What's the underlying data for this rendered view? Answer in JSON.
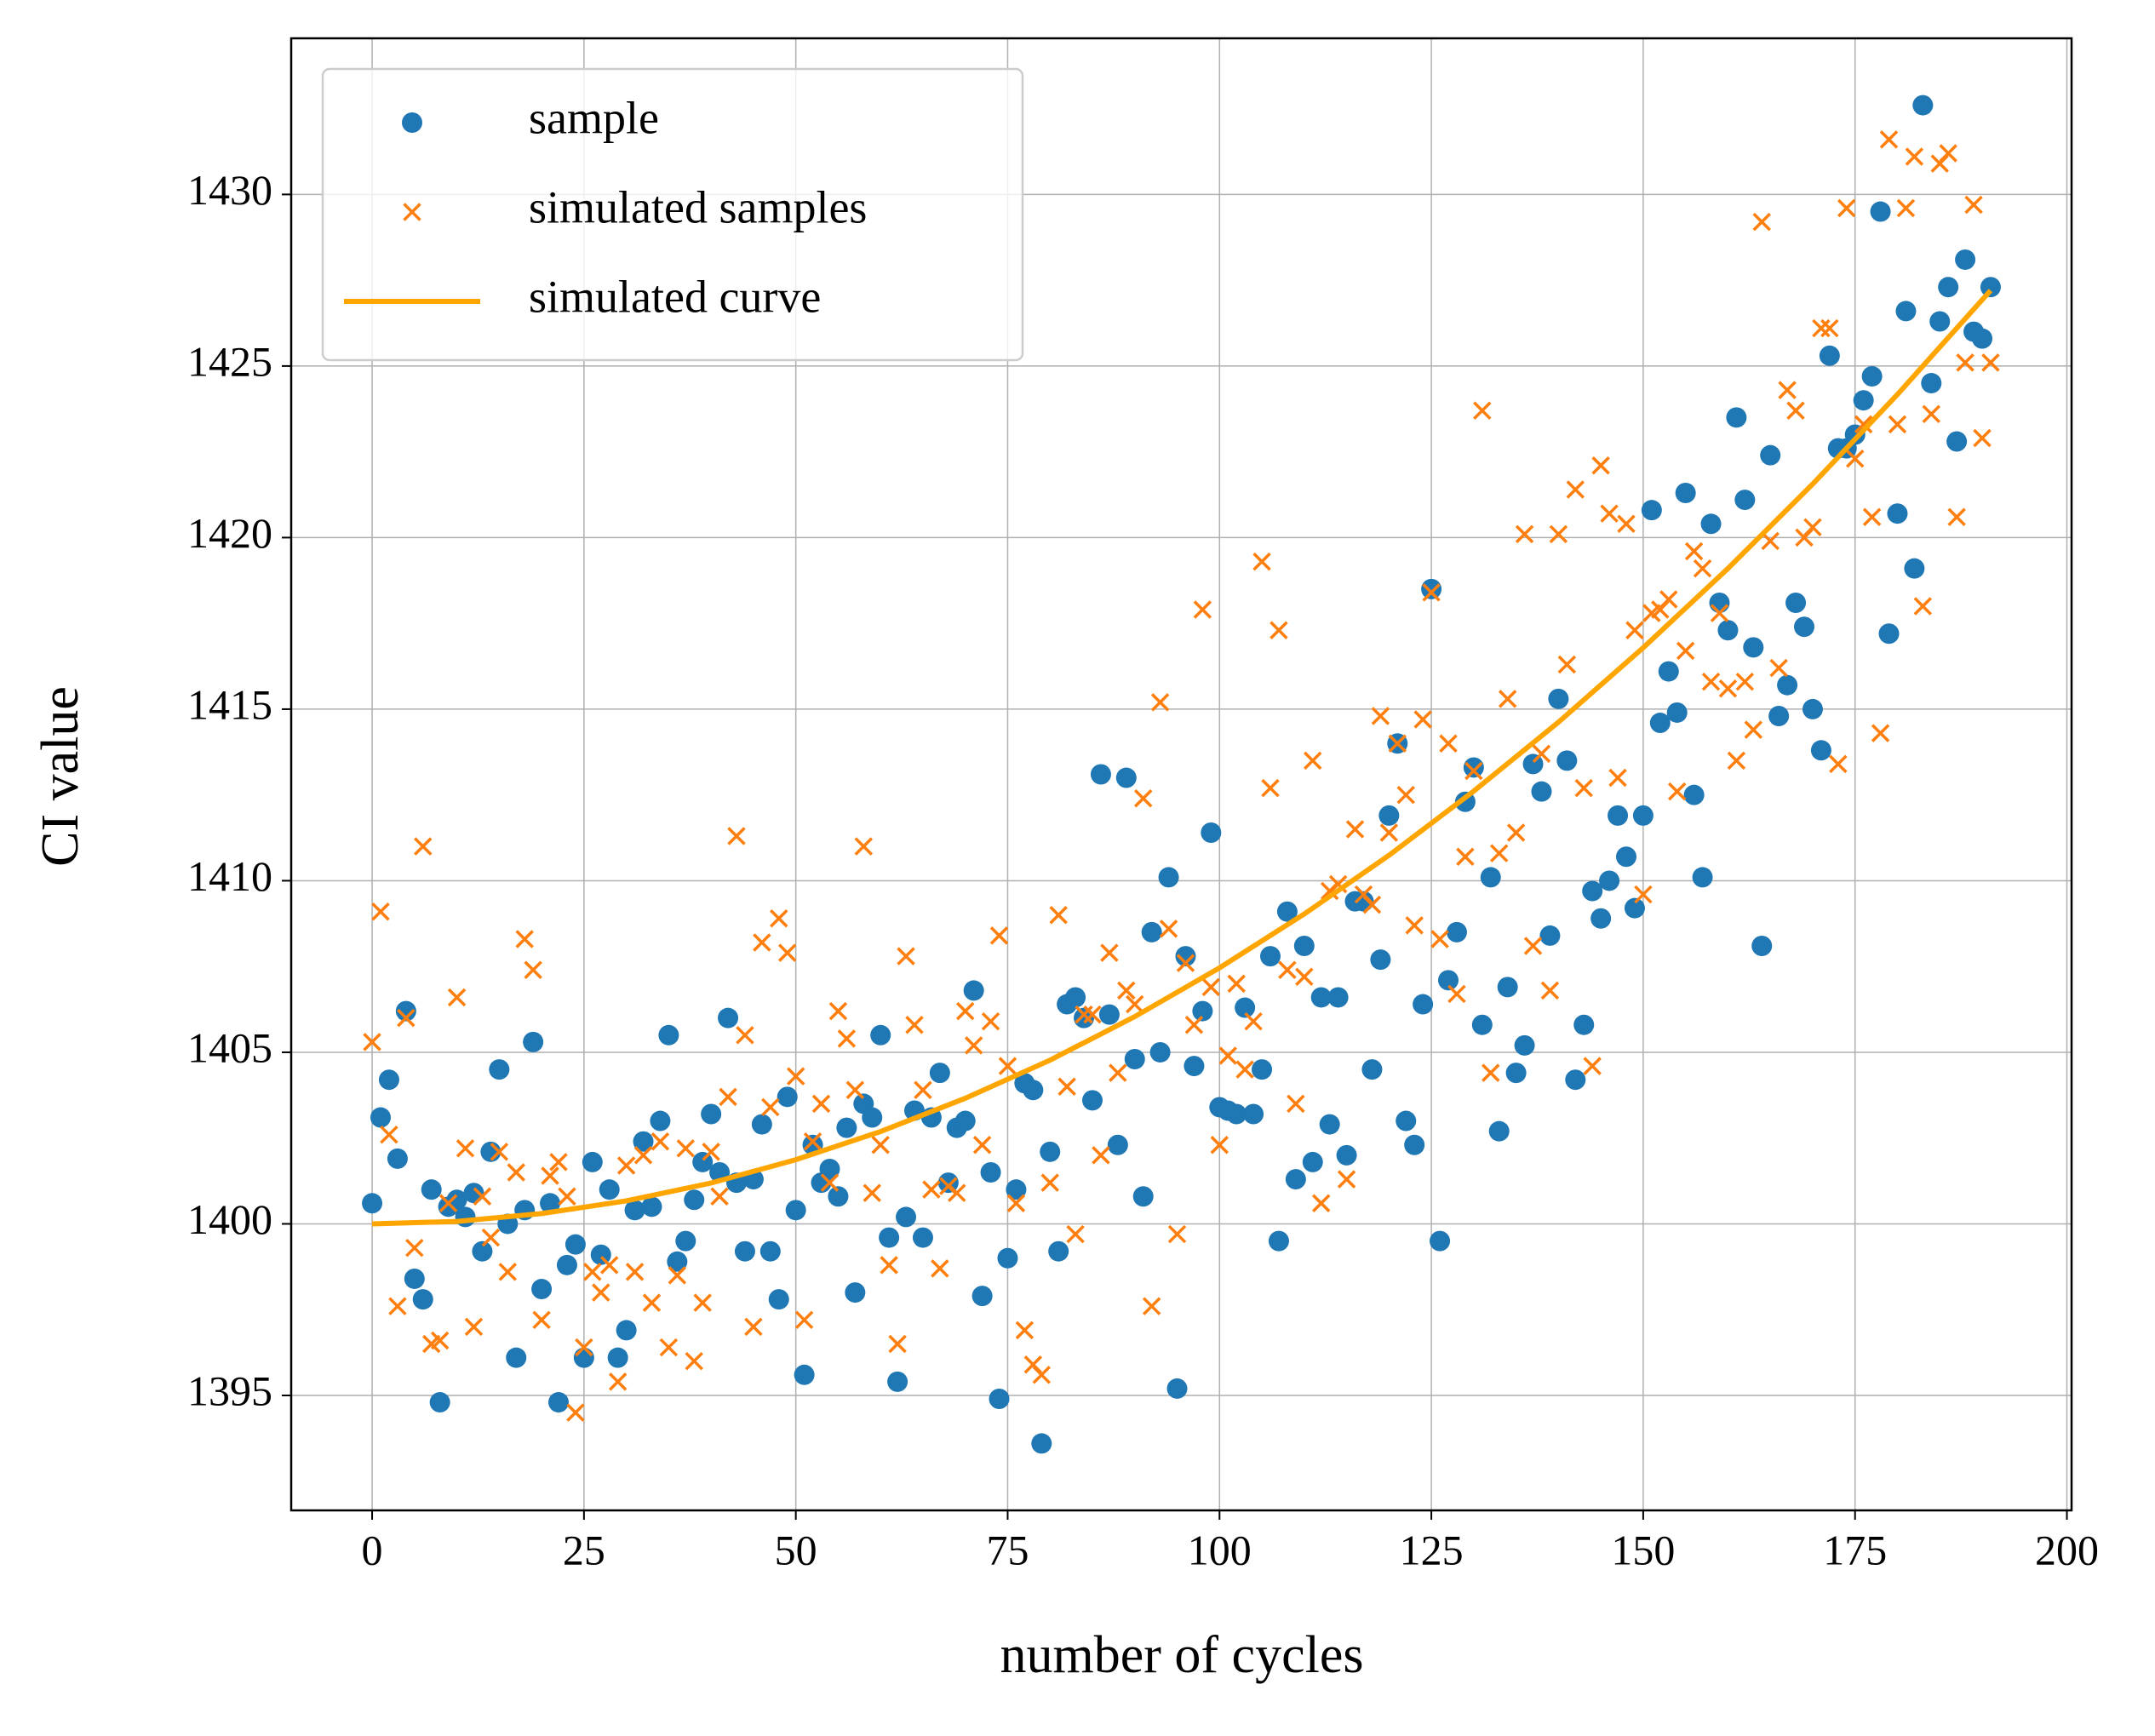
{
  "chart_data": {
    "type": "scatter",
    "xlabel": "number of cycles",
    "ylabel": "CI value",
    "x": [
      0,
      1,
      2,
      3,
      4,
      5,
      6,
      7,
      8,
      9,
      10,
      11,
      12,
      13,
      14,
      15,
      16,
      17,
      18,
      19,
      20,
      21,
      22,
      23,
      24,
      25,
      26,
      27,
      28,
      29,
      30,
      31,
      32,
      33,
      34,
      35,
      36,
      37,
      38,
      39,
      40,
      41,
      42,
      43,
      44,
      45,
      46,
      47,
      48,
      49,
      50,
      51,
      52,
      53,
      54,
      55,
      56,
      57,
      58,
      59,
      60,
      61,
      62,
      63,
      64,
      65,
      66,
      67,
      68,
      69,
      70,
      71,
      72,
      73,
      74,
      75,
      76,
      77,
      78,
      79,
      80,
      81,
      82,
      83,
      84,
      85,
      86,
      87,
      88,
      89,
      90,
      91,
      92,
      93,
      94,
      95,
      96,
      97,
      98,
      99,
      100,
      101,
      102,
      103,
      104,
      105,
      106,
      107,
      108,
      109,
      110,
      111,
      112,
      113,
      114,
      115,
      116,
      117,
      118,
      119,
      120,
      121,
      122,
      123,
      124,
      125,
      126,
      127,
      128,
      129,
      130,
      131,
      132,
      133,
      134,
      135,
      136,
      137,
      138,
      139,
      140,
      141,
      142,
      143,
      144,
      145,
      146,
      147,
      148,
      149,
      150,
      151,
      152,
      153,
      154,
      155,
      156,
      157,
      158,
      159,
      160,
      161,
      162,
      163,
      164,
      165,
      166,
      167,
      168,
      169,
      170,
      171,
      172,
      173,
      174,
      175,
      176,
      177,
      178,
      179,
      180,
      181,
      182,
      183,
      184,
      185,
      186,
      187,
      188,
      189,
      190,
      191
    ],
    "series": [
      {
        "name": "sample",
        "color": "#1f77b4",
        "style": "dot",
        "values": [
          1400.6,
          1403.1,
          1404.2,
          1401.9,
          1406.2,
          1398.4,
          1397.8,
          1401,
          1394.8,
          1400.5,
          1400.7,
          1400.2,
          1400.9,
          1399.2,
          1402.1,
          1404.5,
          1400,
          1396.1,
          1400.4,
          1405.3,
          1398.1,
          1400.6,
          1394.8,
          1398.8,
          1399.4,
          1396.1,
          1401.8,
          1399.1,
          1401,
          1396.1,
          1396.9,
          1400.4,
          1402.4,
          1400.5,
          1403,
          1405.5,
          1398.9,
          1399.5,
          1400.7,
          1401.8,
          1403.2,
          1401.5,
          1406,
          1401.2,
          1399.2,
          1401.3,
          1402.9,
          1399.2,
          1397.8,
          1403.7,
          1400.4,
          1395.6,
          1402.3,
          1401.2,
          1401.6,
          1400.8,
          1402.8,
          1398,
          1403.5,
          1403.1,
          1405.5,
          1399.6,
          1395.4,
          1400.2,
          1403.3,
          1399.6,
          1403.1,
          1404.4,
          1401.2,
          1402.8,
          1403,
          1406.8,
          1397.9,
          1401.5,
          1394.9,
          1399,
          1401,
          1404.1,
          1403.9,
          1393.6,
          1402.1,
          1399.2,
          1406.4,
          1406.6,
          1406,
          1403.6,
          1413.1,
          1406.1,
          1402.3,
          1413,
          1404.8,
          1400.8,
          1408.5,
          1405,
          1410.1,
          1395.2,
          1407.8,
          1404.6,
          1406.2,
          1411.4,
          1403.4,
          1403.3,
          1403.2,
          1406.3,
          1403.2,
          1404.5,
          1407.8,
          1399.5,
          1409.1,
          1401.3,
          1408.1,
          1401.8,
          1406.6,
          1402.9,
          1406.6,
          1402,
          1409.4,
          1409.4,
          1404.5,
          1407.7,
          1411.9,
          1414,
          1403,
          1402.3,
          1406.4,
          1418.5,
          1399.5,
          1407.1,
          1408.5,
          1412.3,
          1413.3,
          1405.8,
          1410.1,
          1402.7,
          1406.9,
          1404.4,
          1405.2,
          1413.4,
          1412.6,
          1408.4,
          1415.3,
          1413.5,
          1404.2,
          1405.8,
          1409.7,
          1408.9,
          1410,
          1411.9,
          1410.7,
          1409.2,
          1411.9,
          1420.8,
          1414.6,
          1416.1,
          1414.9,
          1421.3,
          1412.5,
          1410.1,
          1420.4,
          1418.1,
          1417.3,
          1423.5,
          1421.1,
          1416.8,
          1408.1,
          1422.4,
          1414.8,
          1415.7,
          1418.1,
          1417.4,
          1415,
          1413.8,
          1425.3,
          1422.6,
          1422.6,
          1423,
          1424,
          1424.7,
          1429.5,
          1417.2,
          1420.7,
          1426.6,
          1419.1,
          1432.6,
          1424.5,
          1426.3,
          1427.3,
          1422.8,
          1428.1,
          1426,
          1425.8,
          1427.3
        ]
      },
      {
        "name": "simulated samples",
        "color": "#ff7f0e",
        "style": "cross",
        "values": [
          1405.3,
          1409.1,
          1402.6,
          1397.6,
          1406,
          1399.3,
          1411,
          1396.5,
          1396.6,
          1400.6,
          1406.6,
          1402.2,
          1397,
          1400.8,
          1399.6,
          1402.1,
          1398.6,
          1401.5,
          1408.3,
          1407.4,
          1397.2,
          1401.4,
          1401.8,
          1400.8,
          1394.5,
          1396.4,
          1398.6,
          1398,
          1398.8,
          1395.4,
          1401.7,
          1398.6,
          1402,
          1397.7,
          1402.4,
          1396.4,
          1398.5,
          1402.2,
          1396,
          1397.7,
          1402.1,
          1400.8,
          1403.7,
          1411.3,
          1405.5,
          1397,
          1408.2,
          1403.4,
          1408.9,
          1407.9,
          1404.3,
          1397.2,
          1402.4,
          1403.5,
          1401.2,
          1406.2,
          1405.4,
          1403.9,
          1411,
          1400.9,
          1402.3,
          1398.8,
          1396.5,
          1407.8,
          1405.8,
          1403.9,
          1401,
          1398.7,
          1401.1,
          1400.9,
          1406.2,
          1405.2,
          1402.3,
          1405.9,
          1408.4,
          1404.6,
          1400.6,
          1396.9,
          1395.9,
          1395.6,
          1401.2,
          1409,
          1404,
          1399.7,
          1406.1,
          1406.1,
          1402,
          1407.9,
          1404.4,
          1406.8,
          1406.4,
          1412.4,
          1397.6,
          1415.2,
          1408.6,
          1399.7,
          1407.6,
          1405.8,
          1417.9,
          1406.9,
          1402.3,
          1404.9,
          1407,
          1404.5,
          1405.9,
          1419.3,
          1412.7,
          1417.3,
          1407.4,
          1403.5,
          1407.2,
          1413.5,
          1400.6,
          1409.7,
          1409.9,
          1401.3,
          1411.5,
          1409.6,
          1409.3,
          1414.8,
          1411.4,
          1414,
          1412.5,
          1408.7,
          1414.7,
          1418.4,
          1408.3,
          1414,
          1406.7,
          1410.7,
          1413.2,
          1423.7,
          1404.4,
          1410.8,
          1415.3,
          1411.4,
          1420.1,
          1408.1,
          1413.7,
          1406.8,
          1420.1,
          1416.3,
          1421.4,
          1412.7,
          1404.6,
          1422.1,
          1420.7,
          1413,
          1420.4,
          1417.3,
          1409.6,
          1417.8,
          1417.9,
          1418.2,
          1412.6,
          1416.7,
          1419.6,
          1419.1,
          1415.8,
          1417.8,
          1415.6,
          1413.5,
          1415.8,
          1414.4,
          1429.2,
          1419.9,
          1416.2,
          1424.3,
          1423.7,
          1420,
          1420.3,
          1426.1,
          1426.1,
          1413.4,
          1429.6,
          1422.3,
          1423.3,
          1420.6,
          1414.3,
          1431.6,
          1423.3,
          1429.6,
          1431.1,
          1418,
          1423.6,
          1430.9,
          1431.2,
          1420.6,
          1425.1,
          1429.7,
          1422.9,
          1425.1
        ]
      },
      {
        "name": "simulated curve",
        "color": "#ffa500",
        "style": "line",
        "x": [
          0,
          10,
          20,
          30,
          40,
          50,
          60,
          70,
          80,
          90,
          100,
          110,
          120,
          130,
          140,
          150,
          160,
          170,
          180,
          190,
          191
        ],
        "values": [
          1400,
          1400.07,
          1400.3,
          1400.67,
          1401.19,
          1401.87,
          1402.69,
          1403.66,
          1404.77,
          1406.04,
          1407.46,
          1409.03,
          1410.74,
          1412.61,
          1414.62,
          1416.79,
          1419.1,
          1421.56,
          1424.17,
          1426.93,
          1427.2
        ]
      }
    ],
    "xlim": [
      -9.55,
      200.55
    ],
    "ylim": [
      1391.65,
      1434.55
    ],
    "xticks": [
      0,
      25,
      50,
      75,
      100,
      125,
      150,
      175,
      200
    ],
    "yticks": [
      1395,
      1400,
      1405,
      1410,
      1415,
      1420,
      1425,
      1430
    ],
    "grid": true,
    "legend": "upper left"
  }
}
